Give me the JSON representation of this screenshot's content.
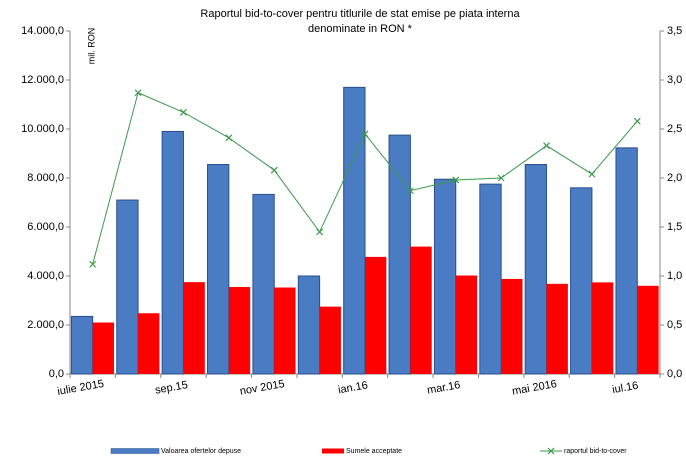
{
  "chart_data": {
    "type": "bar_line",
    "title": [
      "Raportul bid-to-cover pentru titlurile de stat emise pe piata interna",
      "denominate in RON *"
    ],
    "y_label": "mil. RON",
    "categories": [
      "iulie 2015",
      null,
      "sep.15",
      null,
      "nov 2015",
      null,
      "ian.16",
      null,
      "mar.16",
      null,
      "mai 2016",
      null,
      "iul.16"
    ],
    "series": [
      {
        "name": "Valoarea ofertelor depuse",
        "color": "#4a7cc4",
        "type": "bar",
        "values": [
          2350,
          7100,
          9900,
          8550,
          7330,
          4000,
          11700,
          9750,
          7950,
          7750,
          8550,
          7600,
          9230
        ]
      },
      {
        "name": "Sumele acceptate",
        "color": "#ff0000",
        "type": "bar",
        "values": [
          2100,
          2480,
          3750,
          3550,
          3530,
          2750,
          4780,
          5200,
          4020,
          3880,
          3680,
          3740,
          3600
        ]
      },
      {
        "name": "raportul bid-to-cover",
        "color": "#3a9a4a",
        "type": "line",
        "axis": "y2",
        "values": [
          1.12,
          2.87,
          2.67,
          2.41,
          2.08,
          1.45,
          2.45,
          1.87,
          1.98,
          2.0,
          2.33,
          2.04,
          2.58
        ]
      }
    ],
    "ylim": [
      0,
      14000
    ],
    "yticks": [
      {
        "value": 0,
        "label": "0,0"
      },
      {
        "value": 2000,
        "label": "2.000,0"
      },
      {
        "value": 4000,
        "label": "4.000,0"
      },
      {
        "value": 6000,
        "label": "6.000,0"
      },
      {
        "value": 8000,
        "label": "8.000,0"
      },
      {
        "value": 10000,
        "label": "10.000,0"
      },
      {
        "value": 12000,
        "label": "12.000,0"
      },
      {
        "value": 14000,
        "label": "14.000,0"
      }
    ],
    "y2lim": [
      0,
      3.5
    ],
    "y2ticks": [
      {
        "value": 0,
        "label": "0,0"
      },
      {
        "value": 0.5,
        "label": "0,5"
      },
      {
        "value": 1,
        "label": "1,0"
      },
      {
        "value": 1.5,
        "label": "1,5"
      },
      {
        "value": 2,
        "label": "2,0"
      },
      {
        "value": 2.5,
        "label": "2,5"
      },
      {
        "value": 3,
        "label": "3,0"
      },
      {
        "value": 3.5,
        "label": "3,5"
      }
    ],
    "legend": "bottom"
  }
}
